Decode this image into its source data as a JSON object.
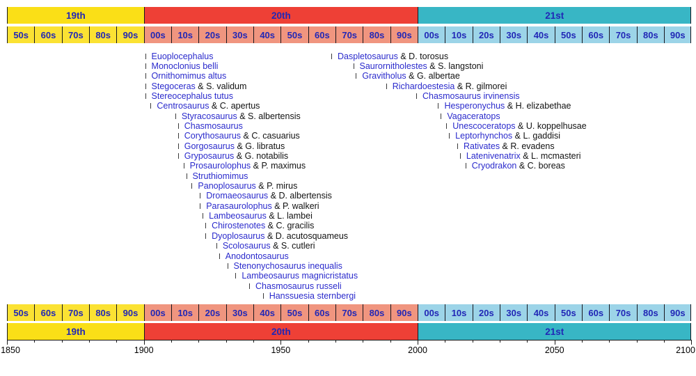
{
  "chart_data": {
    "type": "timeline",
    "axis": {
      "min": 1850,
      "max": 2100,
      "minor_tick_interval": 10,
      "labeled_ticks": [
        1850,
        1900,
        1950,
        2000,
        2050,
        2100
      ],
      "tick_labels": [
        "1850",
        "1900",
        "1950",
        "2000",
        "2050",
        "2100"
      ]
    },
    "centuries": [
      {
        "label": "19th",
        "start": 1850,
        "end": 1900,
        "band_color": "#fadf17",
        "decade_color": "#fbe233"
      },
      {
        "label": "20th",
        "start": 1900,
        "end": 2000,
        "band_color": "#ee4036",
        "decade_color": "#f0957f"
      },
      {
        "label": "21st",
        "start": 2000,
        "end": 2100,
        "band_color": "#38b6c5",
        "decade_color": "#9cd4e8"
      }
    ],
    "decade_labels": [
      "50s",
      "60s",
      "70s",
      "80s",
      "90s",
      "00s",
      "10s",
      "20s",
      "30s",
      "40s",
      "50s",
      "60s",
      "70s",
      "80s",
      "90s",
      "00s",
      "10s",
      "20s",
      "30s",
      "40s",
      "50s",
      "60s",
      "70s",
      "80s",
      "90s"
    ],
    "entries": [
      {
        "genus": "Euoplocephalus",
        "species": "",
        "year": 1902,
        "row": 1,
        "column": "left"
      },
      {
        "genus": "Monoclonius belli",
        "species": "",
        "year": 1902,
        "row": 2,
        "column": "left"
      },
      {
        "genus": "Ornithomimus altus",
        "species": "",
        "year": 1902,
        "row": 3,
        "column": "left"
      },
      {
        "genus": "Stegoceras",
        "species": " & S. validum",
        "year": 1902,
        "row": 4,
        "column": "left"
      },
      {
        "genus": "Stereocephalus tutus",
        "species": "",
        "year": 1902,
        "row": 5,
        "column": "left"
      },
      {
        "genus": "Centrosaurus",
        "species": " & C. apertus",
        "year": 1904,
        "row": 6,
        "column": "left"
      },
      {
        "genus": "Styracosaurus",
        "species": " & S. albertensis",
        "year": 1913,
        "row": 7,
        "column": "left"
      },
      {
        "genus": "Chasmosaurus",
        "species": "",
        "year": 1914,
        "row": 8,
        "column": "left"
      },
      {
        "genus": "Corythosaurus",
        "species": " & C. casuarius",
        "year": 1914,
        "row": 9,
        "column": "left"
      },
      {
        "genus": "Gorgosaurus",
        "species": " & G. libratus",
        "year": 1914,
        "row": 10,
        "column": "left"
      },
      {
        "genus": "Gryposaurus",
        "species": " & G. notabilis",
        "year": 1914,
        "row": 11,
        "column": "left"
      },
      {
        "genus": "Prosaurolophus",
        "species": " & P. maximus",
        "year": 1916,
        "row": 12,
        "column": "left"
      },
      {
        "genus": "Struthiomimus",
        "species": "",
        "year": 1917,
        "row": 13,
        "column": "left"
      },
      {
        "genus": "Panoplosaurus",
        "species": " & P. mirus",
        "year": 1919,
        "row": 14,
        "column": "left"
      },
      {
        "genus": "Dromaeosaurus",
        "species": " & D. albertensis",
        "year": 1922,
        "row": 15,
        "column": "left"
      },
      {
        "genus": "Parasaurolophus",
        "species": " & P. walkeri",
        "year": 1922,
        "row": 16,
        "column": "left"
      },
      {
        "genus": "Lambeosaurus",
        "species": " & L. lambei",
        "year": 1923,
        "row": 17,
        "column": "left"
      },
      {
        "genus": "Chirostenotes",
        "species": " & C. gracilis",
        "year": 1924,
        "row": 18,
        "column": "left"
      },
      {
        "genus": "Dyoplosaurus",
        "species": " & D. acutosquameus",
        "year": 1924,
        "row": 19,
        "column": "left"
      },
      {
        "genus": "Scolosaurus",
        "species": " & S. cutleri",
        "year": 1928,
        "row": 20,
        "column": "left"
      },
      {
        "genus": "Anodontosaurus",
        "species": "",
        "year": 1929,
        "row": 21,
        "column": "left"
      },
      {
        "genus": "Stenonychosaurus inequalis",
        "species": "",
        "year": 1932,
        "row": 22,
        "column": "left"
      },
      {
        "genus": "Lambeosaurus magnicristatus",
        "species": "",
        "year": 1935,
        "row": 23,
        "column": "left"
      },
      {
        "genus": "Chasmosaurus russeli",
        "species": "",
        "year": 1940,
        "row": 24,
        "column": "left"
      },
      {
        "genus": "Hanssuesia sternbergi",
        "species": "",
        "year": 1945,
        "row": 25,
        "column": "left"
      },
      {
        "genus": "Daspletosaurus",
        "species": " & D. torosus",
        "year": 1970,
        "row": 1,
        "column": "right"
      },
      {
        "genus": "Saurornitholestes",
        "species": " & S. langstoni",
        "year": 1978,
        "row": 2,
        "column": "right"
      },
      {
        "genus": "Gravitholus",
        "species": " & G. albertae",
        "year": 1979,
        "row": 3,
        "column": "right"
      },
      {
        "genus": "Richardoestesia",
        "species": " & R. gilmorei",
        "year": 1990,
        "row": 4,
        "column": "right"
      },
      {
        "genus": "Chasmosaurus irvinensis",
        "species": "",
        "year": 2001,
        "row": 5,
        "column": "right"
      },
      {
        "genus": "Hesperonychus",
        "species": " & H. elizabethae",
        "year": 2009,
        "row": 6,
        "column": "right"
      },
      {
        "genus": "Vagaceratops",
        "species": "",
        "year": 2010,
        "row": 7,
        "column": "right"
      },
      {
        "genus": "Unescoceratops",
        "species": " & U. koppelhusae",
        "year": 2012,
        "row": 8,
        "column": "right"
      },
      {
        "genus": "Leptorhynchos",
        "species": " & L. gaddisi",
        "year": 2013,
        "row": 9,
        "column": "right"
      },
      {
        "genus": "Rativates",
        "species": " & R. evadens",
        "year": 2016,
        "row": 10,
        "column": "right"
      },
      {
        "genus": "Latenivenatrix",
        "species": " & L. mcmasteri",
        "year": 2017,
        "row": 11,
        "column": "right"
      },
      {
        "genus": "Cryodrakon",
        "species": " & C. boreas",
        "year": 2019,
        "row": 12,
        "column": "right"
      }
    ]
  },
  "colors": {
    "background": "#ffffff",
    "link_blue": "#2a2acc",
    "species_black": "#111111",
    "band_label_blue": "#2127b6",
    "axis_label_black": "#000000",
    "entry_tick_gray": "#3a3a3a",
    "divider_dark": "#16161e",
    "axis_line_black": "#1a1a1a"
  }
}
